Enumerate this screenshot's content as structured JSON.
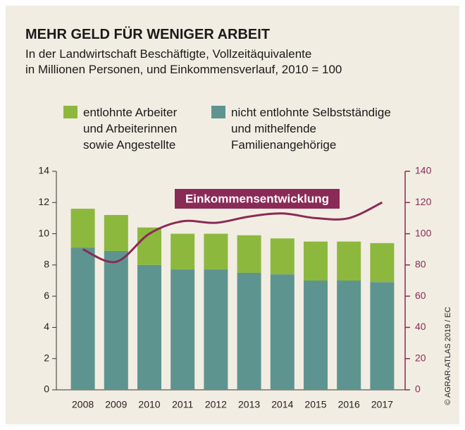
{
  "chart_data": {
    "type": "bar",
    "title": "MEHR GELD FÜR WENIGER ARBEIT",
    "subtitle": "In der Landwirtschaft Beschäftigte, Vollzeitäquivalente\nin Millionen Personen, und Einkommensverlauf, 2010 = 100",
    "credit": "© AGRAR-ATLAS 2019 / EC",
    "categories": [
      "2008",
      "2009",
      "2010",
      "2011",
      "2012",
      "2013",
      "2014",
      "2015",
      "2016",
      "2017"
    ],
    "stacked": true,
    "series": [
      {
        "name": "nicht entlohnte Selbstständige\nund mithelfende\nFamilienangehörige",
        "color": "#5e9490",
        "values": [
          9.1,
          8.9,
          8.0,
          7.7,
          7.7,
          7.5,
          7.4,
          7.0,
          7.0,
          6.9
        ]
      },
      {
        "name": "entlohnte Arbeiter\nund Arbeiterinnen\nsowie Angestellte",
        "color": "#8db83e",
        "values": [
          2.5,
          2.3,
          2.4,
          2.3,
          2.3,
          2.4,
          2.3,
          2.5,
          2.5,
          2.5
        ]
      },
      {
        "name": "Einkommensentwicklung",
        "type": "line",
        "axis": "y2",
        "color": "#8a2a57",
        "values": [
          90,
          82,
          100,
          108,
          107,
          111,
          113,
          110,
          110,
          120
        ]
      }
    ],
    "ylim": [
      0,
      14
    ],
    "yticks": [
      0,
      2,
      4,
      6,
      8,
      10,
      12,
      14
    ],
    "y2lim": [
      0,
      140
    ],
    "y2ticks": [
      0,
      20,
      40,
      60,
      80,
      100,
      120,
      140
    ],
    "grid": false
  }
}
